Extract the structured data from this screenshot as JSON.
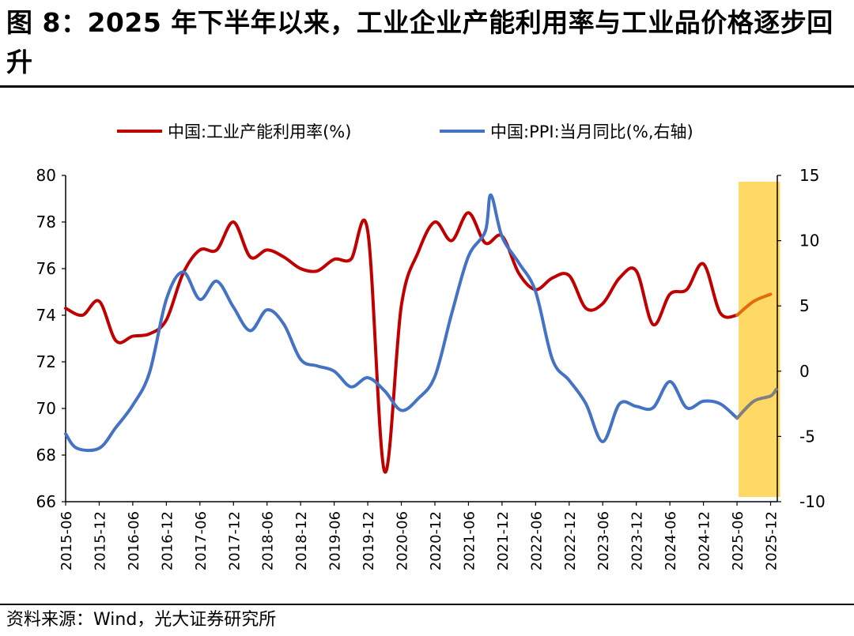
{
  "title": "图 8：2025 年下半年以来，工业企业产能利用率与工业品价格逐步回升",
  "source": "资料来源：Wind，光大证券研究所",
  "colors": {
    "series_1": "#c00000",
    "series_2": "#4472c4",
    "highlight": "#ffd966",
    "forecast_1": "#e46c0a",
    "forecast_2": "#808080"
  },
  "chart_data": {
    "type": "line",
    "legend_position": "top",
    "x_ticks": [
      "2015-06",
      "2015-12",
      "2016-06",
      "2016-12",
      "2017-06",
      "2017-12",
      "2018-06",
      "2018-12",
      "2019-06",
      "2019-12",
      "2020-06",
      "2020-12",
      "2021-06",
      "2021-12",
      "2022-06",
      "2022-12",
      "2023-06",
      "2023-12",
      "2024-06",
      "2024-12",
      "2025-06",
      "2025-12"
    ],
    "y_left": {
      "min": 66,
      "max": 80,
      "step": 2,
      "ticks": [
        "80",
        "78",
        "76",
        "74",
        "72",
        "70",
        "68",
        "66"
      ]
    },
    "y_right": {
      "min": -10,
      "max": 15,
      "step": 5,
      "ticks": [
        "15",
        "10",
        "5",
        "0",
        "-5",
        "-10"
      ]
    },
    "highlight_range": [
      "2025-06",
      "2025-12"
    ],
    "series": [
      {
        "name": "中国:工业产能利用率(%)",
        "axis": "left",
        "points": [
          [
            "2015-06",
            74.3
          ],
          [
            "2015-09",
            74.0
          ],
          [
            "2015-12",
            74.6
          ],
          [
            "2016-03",
            72.9
          ],
          [
            "2016-06",
            73.1
          ],
          [
            "2016-09",
            73.2
          ],
          [
            "2016-12",
            73.8
          ],
          [
            "2017-03",
            75.8
          ],
          [
            "2017-06",
            76.8
          ],
          [
            "2017-09",
            76.8
          ],
          [
            "2017-12",
            78.0
          ],
          [
            "2018-03",
            76.5
          ],
          [
            "2018-06",
            76.8
          ],
          [
            "2018-09",
            76.5
          ],
          [
            "2018-12",
            76.0
          ],
          [
            "2019-03",
            75.9
          ],
          [
            "2019-06",
            76.4
          ],
          [
            "2019-09",
            76.4
          ],
          [
            "2019-12",
            77.6
          ],
          [
            "2020-03",
            67.3
          ],
          [
            "2020-06",
            74.4
          ],
          [
            "2020-09",
            76.7
          ],
          [
            "2020-12",
            78.0
          ],
          [
            "2021-03",
            77.2
          ],
          [
            "2021-06",
            78.4
          ],
          [
            "2021-09",
            77.1
          ],
          [
            "2021-12",
            77.4
          ],
          [
            "2022-03",
            75.8
          ],
          [
            "2022-06",
            75.1
          ],
          [
            "2022-09",
            75.6
          ],
          [
            "2022-12",
            75.7
          ],
          [
            "2023-03",
            74.3
          ],
          [
            "2023-06",
            74.5
          ],
          [
            "2023-09",
            75.6
          ],
          [
            "2023-12",
            75.9
          ],
          [
            "2024-03",
            73.6
          ],
          [
            "2024-06",
            74.9
          ],
          [
            "2024-09",
            75.1
          ],
          [
            "2024-12",
            76.2
          ],
          [
            "2025-03",
            74.1
          ],
          [
            "2025-06",
            74.0
          ],
          [
            "2025-09",
            74.6
          ],
          [
            "2025-12",
            74.9
          ]
        ]
      },
      {
        "name": "中国:PPI:当月同比(%,右轴)",
        "axis": "right",
        "points": [
          [
            "2015-06",
            -4.8
          ],
          [
            "2015-08",
            -5.9
          ],
          [
            "2015-12",
            -5.9
          ],
          [
            "2016-03",
            -4.3
          ],
          [
            "2016-06",
            -2.6
          ],
          [
            "2016-09",
            -0.1
          ],
          [
            "2016-12",
            5.5
          ],
          [
            "2017-03",
            7.6
          ],
          [
            "2017-06",
            5.5
          ],
          [
            "2017-09",
            6.9
          ],
          [
            "2017-12",
            4.9
          ],
          [
            "2018-03",
            3.1
          ],
          [
            "2018-06",
            4.7
          ],
          [
            "2018-09",
            3.6
          ],
          [
            "2018-12",
            0.9
          ],
          [
            "2019-03",
            0.4
          ],
          [
            "2019-06",
            0.0
          ],
          [
            "2019-09",
            -1.2
          ],
          [
            "2019-12",
            -0.5
          ],
          [
            "2020-03",
            -1.5
          ],
          [
            "2020-06",
            -3.0
          ],
          [
            "2020-09",
            -2.1
          ],
          [
            "2020-12",
            -0.4
          ],
          [
            "2021-03",
            4.4
          ],
          [
            "2021-06",
            8.8
          ],
          [
            "2021-09",
            10.7
          ],
          [
            "2021-10",
            13.5
          ],
          [
            "2021-12",
            10.3
          ],
          [
            "2022-03",
            8.3
          ],
          [
            "2022-06",
            6.1
          ],
          [
            "2022-09",
            0.9
          ],
          [
            "2022-12",
            -0.7
          ],
          [
            "2023-03",
            -2.5
          ],
          [
            "2023-06",
            -5.4
          ],
          [
            "2023-09",
            -2.5
          ],
          [
            "2023-12",
            -2.7
          ],
          [
            "2024-03",
            -2.8
          ],
          [
            "2024-06",
            -0.8
          ],
          [
            "2024-09",
            -2.8
          ],
          [
            "2024-12",
            -2.3
          ],
          [
            "2025-03",
            -2.5
          ],
          [
            "2025-06",
            -3.6
          ],
          [
            "2025-09",
            -2.3
          ],
          [
            "2025-12",
            -1.9
          ],
          [
            "2026-01",
            -1.4
          ]
        ]
      }
    ]
  }
}
